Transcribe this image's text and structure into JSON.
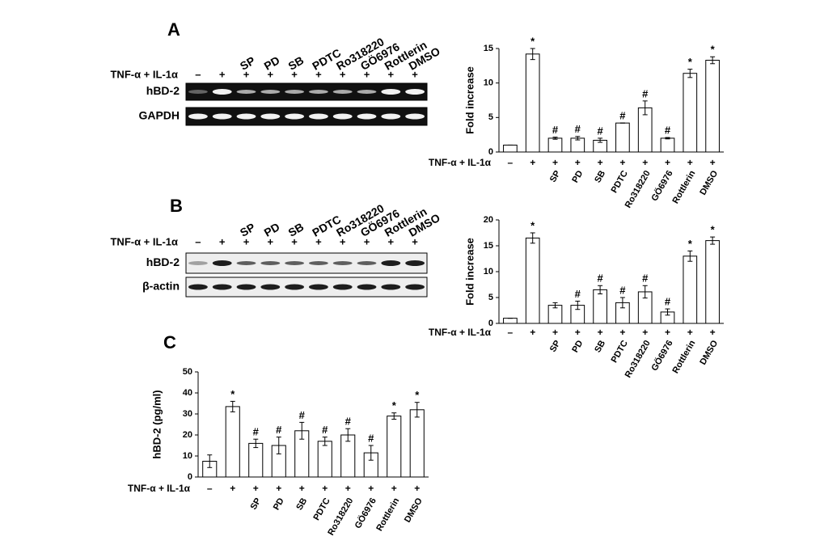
{
  "panels": [
    {
      "label": "A",
      "blot": {
        "treatment_label": "TNF-α + IL-1α",
        "treatments": [
          "–",
          "+",
          "+",
          "+",
          "+",
          "+",
          "+",
          "+",
          "+",
          "+"
        ],
        "lanes": [
          null,
          null,
          "SP",
          "PD",
          "SB",
          "PDTC",
          "Ro318220",
          "GÖ6976",
          "Rottlerin",
          "DMSO"
        ],
        "rows": [
          "hBD-2",
          "GAPDH"
        ]
      }
    },
    {
      "label": "B",
      "blot": {
        "treatment_label": "TNF-α + IL-1α",
        "treatments": [
          "–",
          "+",
          "+",
          "+",
          "+",
          "+",
          "+",
          "+",
          "+",
          "+"
        ],
        "lanes": [
          null,
          null,
          "SP",
          "PD",
          "SB",
          "PDTC",
          "Ro318220",
          "GÖ6976",
          "Rottlerin",
          "DMSO"
        ],
        "rows": [
          "hBD-2",
          "β-actin"
        ]
      }
    },
    {
      "label": "C"
    }
  ],
  "chart_data": [
    {
      "type": "bar",
      "ylabel": "Fold increase",
      "treatment_label": "TNF-α + IL-1α",
      "treatments": [
        "–",
        "+",
        "+",
        "+",
        "+",
        "+",
        "+",
        "+",
        "+",
        "+"
      ],
      "categories": [
        null,
        null,
        "SP",
        "PD",
        "SB",
        "PDTC",
        "Ro318220",
        "GÖ6976",
        "Rottlerin",
        "DMSO"
      ],
      "values": [
        1,
        14.2,
        2.0,
        2.0,
        1.7,
        4.2,
        6.4,
        2.0,
        11.4,
        13.3
      ],
      "errors": [
        0,
        0.8,
        0.15,
        0.25,
        0.3,
        0,
        1.0,
        0.1,
        0.6,
        0.5
      ],
      "markers": [
        null,
        "*",
        "#",
        "#",
        "#",
        "#",
        "#",
        "#",
        "*",
        "*"
      ],
      "color": "#ffffff",
      "ylim": [
        0,
        15
      ],
      "yticks": [
        0,
        5,
        10,
        15
      ]
    },
    {
      "type": "bar",
      "ylabel": "Fold increase",
      "treatment_label": "TNF-α + IL-1α",
      "treatments": [
        "–",
        "+",
        "+",
        "+",
        "+",
        "+",
        "+",
        "+",
        "+",
        "+"
      ],
      "categories": [
        null,
        null,
        "SP",
        "PD",
        "SB",
        "PDTC",
        "Ro318220",
        "GÖ6976",
        "Rottlerin",
        "DMSO"
      ],
      "values": [
        1,
        16.5,
        3.5,
        3.5,
        6.5,
        4,
        6.1,
        2.2,
        13,
        16
      ],
      "errors": [
        0,
        1.0,
        0.5,
        0.8,
        0.8,
        1.0,
        1.2,
        0.6,
        1.0,
        0.7
      ],
      "markers": [
        null,
        "*",
        null,
        "#",
        "#",
        "#",
        "#",
        "#",
        "*",
        "*"
      ],
      "color": "#ffffff",
      "ylim": [
        0,
        20
      ],
      "yticks": [
        0,
        5,
        10,
        15,
        20
      ]
    },
    {
      "type": "bar",
      "ylabel": "hBD-2 (pg/ml)",
      "treatment_label": "TNF-α + IL-1α",
      "treatments": [
        "–",
        "+",
        "+",
        "+",
        "+",
        "+",
        "+",
        "+",
        "+",
        "+"
      ],
      "categories": [
        null,
        null,
        "SP",
        "PD",
        "SB",
        "PDTC",
        "Ro318220",
        "GÖ6976",
        "Rottlerin",
        "DMSO"
      ],
      "values": [
        7.5,
        33.5,
        16,
        15,
        22,
        17,
        20,
        11.5,
        29,
        32
      ],
      "errors": [
        3,
        2.5,
        2,
        4,
        4,
        2,
        3,
        3.5,
        1.5,
        3.5
      ],
      "markers": [
        null,
        "*",
        "#",
        "#",
        "#",
        "#",
        "#",
        "#",
        "*",
        "*"
      ],
      "color": "#ffffff",
      "ylim": [
        0,
        50
      ],
      "yticks": [
        0,
        10,
        20,
        30,
        40,
        50
      ]
    }
  ]
}
